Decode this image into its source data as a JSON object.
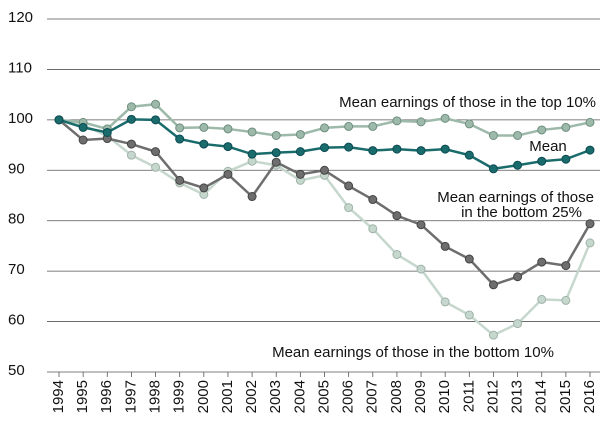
{
  "chart_data": {
    "type": "line",
    "categories": [
      "1994",
      "1995",
      "1996",
      "1997",
      "1998",
      "1999",
      "2000",
      "2001",
      "2002",
      "2003",
      "2004",
      "2005",
      "2006",
      "2007",
      "2008",
      "2009",
      "2010",
      "2011",
      "2012",
      "2013",
      "2014",
      "2015",
      "2016"
    ],
    "series": [
      {
        "name": "Mean earnings of those in the top 10%",
        "color": "#9db9a9",
        "values": [
          100,
          99.5,
          98.2,
          102.6,
          103.1,
          98.4,
          98.5,
          98.2,
          97.6,
          96.9,
          97.1,
          98.4,
          98.7,
          98.7,
          99.8,
          99.6,
          100.3,
          99.2,
          96.9,
          96.9,
          98.0,
          98.5,
          99.5
        ]
      },
      {
        "name": "Mean",
        "color": "#1a6b6b",
        "values": [
          100,
          98.5,
          97.5,
          100.1,
          100,
          96.2,
          95.2,
          94.7,
          93.2,
          93.5,
          93.7,
          94.5,
          94.6,
          93.9,
          94.2,
          93.9,
          94.2,
          93.0,
          90.3,
          91.0,
          91.8,
          92.2,
          94.0
        ]
      },
      {
        "name": "Mean earnings of those in the bottom 25%",
        "color": "#6e6e6e",
        "values": [
          100,
          96.0,
          96.3,
          95.2,
          93.7,
          88.0,
          86.5,
          89.2,
          84.8,
          91.6,
          89.2,
          90.0,
          86.9,
          84.2,
          81.0,
          79.2,
          74.9,
          72.4,
          67.3,
          68.9,
          71.8,
          71.1,
          79.4
        ]
      },
      {
        "name": "Mean earnings of those in the bottom 10%",
        "color": "#c6d7cd",
        "values": [
          100,
          99.0,
          96.8,
          93.0,
          90.6,
          87.5,
          85.2,
          89.8,
          91.8,
          91.0,
          88.0,
          89.0,
          82.6,
          78.4,
          73.3,
          70.4,
          63.9,
          61.3,
          57.3,
          59.6,
          64.4,
          64.2,
          75.6
        ]
      }
    ],
    "legend_lines": [
      [
        "Mean earnings of those in the top 10%"
      ],
      [
        "Mean"
      ],
      [
        "Mean earnings of those",
        "in the bottom 25%"
      ],
      [
        "Mean earnings of those in the bottom 10%"
      ]
    ],
    "ylim": [
      50,
      120
    ],
    "yticks": [
      50,
      60,
      70,
      80,
      90,
      100,
      110,
      120
    ],
    "grid": true
  }
}
